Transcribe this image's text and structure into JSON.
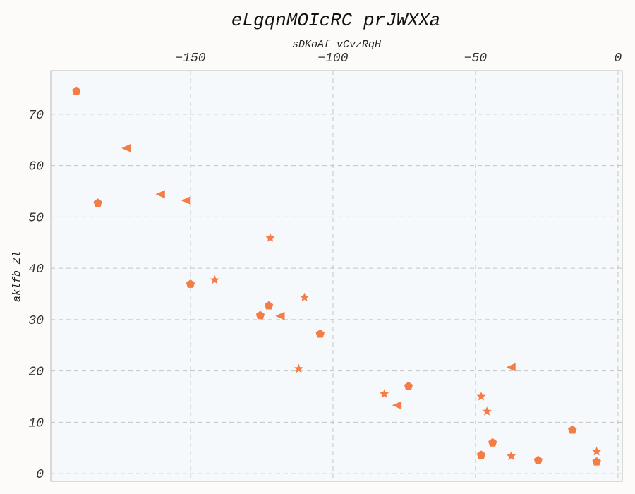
{
  "chart_data": {
    "type": "scatter",
    "title": "eLgqnMOIcRC prJWXXa",
    "xlabel": "sDKoAf vCvzRqH",
    "ylabel": "aklfb Zl",
    "x_axis_position": "top",
    "xlim": [
      -199,
      1.5
    ],
    "ylim": [
      -1.5,
      78.5
    ],
    "xticks": [
      -150,
      -100,
      -50,
      0
    ],
    "yticks": [
      0,
      10,
      20,
      30,
      40,
      50,
      60,
      70
    ],
    "grid": true,
    "color": "#f47c45",
    "series": [
      {
        "marker": "pentagon",
        "points": [
          [
            -190,
            74.5
          ],
          [
            -182.5,
            52.7
          ],
          [
            -150,
            36.9
          ],
          [
            -125.5,
            30.8
          ],
          [
            -122.5,
            32.7
          ],
          [
            -104.5,
            27.2
          ],
          [
            -73.5,
            17
          ],
          [
            -48,
            3.6
          ],
          [
            -44,
            6
          ],
          [
            -28,
            2.6
          ],
          [
            -16,
            8.5
          ],
          [
            -7.5,
            2.3
          ]
        ]
      },
      {
        "marker": "star",
        "points": [
          [
            -122,
            45.9
          ],
          [
            -141.5,
            37.7
          ],
          [
            -110,
            34.3
          ],
          [
            -112,
            20.4
          ],
          [
            -82,
            15.5
          ],
          [
            -48,
            15
          ],
          [
            -46,
            12.1
          ],
          [
            -37.5,
            3.4
          ],
          [
            -7.5,
            4.3
          ]
        ]
      },
      {
        "marker": "triangle-left",
        "points": [
          [
            -172.5,
            63.4
          ],
          [
            -160.5,
            54.4
          ],
          [
            -151.5,
            53.2
          ],
          [
            -118.5,
            30.7
          ],
          [
            -77.5,
            13.3
          ],
          [
            -37.5,
            20.7
          ]
        ]
      }
    ]
  }
}
